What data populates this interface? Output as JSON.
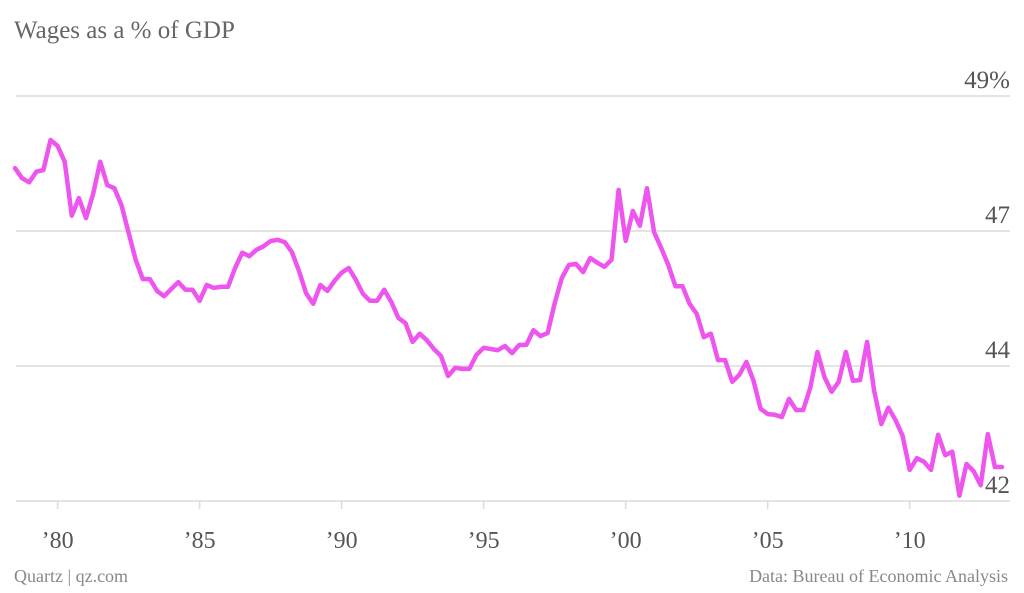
{
  "chart_data": {
    "type": "line",
    "title": "Wages as a % of GDP",
    "credit": "Quartz | qz.com",
    "source": "Data: Bureau of Economic Analysis",
    "x": [
      1978.5,
      1978.75,
      1979,
      1979.25,
      1979.5,
      1979.75,
      1980,
      1980.25,
      1980.5,
      1980.75,
      1981,
      1981.25,
      1981.5,
      1981.75,
      1982,
      1982.25,
      1982.5,
      1982.75,
      1983,
      1983.25,
      1983.5,
      1983.75,
      1984,
      1984.25,
      1984.5,
      1984.75,
      1985,
      1985.25,
      1985.5,
      1985.75,
      1986,
      1986.25,
      1986.5,
      1986.75,
      1987,
      1987.25,
      1987.5,
      1987.75,
      1988,
      1988.25,
      1988.5,
      1988.75,
      1989,
      1989.25,
      1989.5,
      1989.75,
      1990,
      1990.25,
      1990.5,
      1990.75,
      1991,
      1991.25,
      1991.5,
      1991.75,
      1992,
      1992.25,
      1992.5,
      1992.75,
      1993,
      1993.25,
      1993.5,
      1993.75,
      1994,
      1994.25,
      1994.5,
      1994.75,
      1995,
      1995.25,
      1995.5,
      1995.75,
      1996,
      1996.25,
      1996.5,
      1996.75,
      1997,
      1997.25,
      1997.5,
      1997.75,
      1998,
      1998.25,
      1998.5,
      1998.75,
      1999,
      1999.25,
      1999.5,
      1999.75,
      2000,
      2000.25,
      2000.5,
      2000.75,
      2001,
      2001.25,
      2001.5,
      2001.75,
      2002,
      2002.25,
      2002.5,
      2002.75,
      2003,
      2003.25,
      2003.5,
      2003.75,
      2004,
      2004.25,
      2004.5,
      2004.75,
      2005,
      2005.25,
      2005.5,
      2005.75,
      2006,
      2006.25,
      2006.5,
      2006.75,
      2007,
      2007.25,
      2007.5,
      2007.75,
      2008,
      2008.25,
      2008.5,
      2008.75,
      2009,
      2009.25,
      2009.5,
      2009.75,
      2010,
      2010.25,
      2010.5,
      2010.75,
      2011,
      2011.25,
      2011.5,
      2011.75,
      2012,
      2012.25,
      2012.5,
      2012.75,
      2013,
      2013.25
    ],
    "series": [
      {
        "name": "Wages as a % of GDP",
        "color": "#ee55ee",
        "values": [
          47.67,
          47.5,
          47.43,
          47.61,
          47.64,
          48.15,
          48.05,
          47.78,
          46.86,
          47.16,
          46.82,
          47.23,
          47.78,
          47.38,
          47.33,
          47.04,
          46.57,
          46.11,
          45.78,
          45.78,
          45.58,
          45.49,
          45.61,
          45.73,
          45.6,
          45.6,
          45.41,
          45.68,
          45.63,
          45.65,
          45.65,
          45.97,
          46.23,
          46.17,
          46.28,
          46.34,
          46.43,
          46.45,
          46.41,
          46.24,
          45.92,
          45.54,
          45.36,
          45.68,
          45.58,
          45.75,
          45.89,
          45.97,
          45.77,
          45.53,
          45.41,
          45.41,
          45.6,
          45.39,
          45.12,
          45.03,
          44.71,
          44.85,
          44.74,
          44.59,
          44.47,
          44.13,
          44.27,
          44.25,
          44.25,
          44.49,
          44.61,
          44.59,
          44.57,
          44.64,
          44.52,
          44.66,
          44.66,
          44.91,
          44.81,
          44.86,
          45.37,
          45.8,
          46.02,
          46.04,
          45.9,
          46.14,
          46.06,
          45.99,
          46.11,
          47.3,
          46.43,
          46.94,
          46.69,
          47.33,
          46.58,
          46.31,
          46.02,
          45.66,
          45.66,
          45.36,
          45.19,
          44.79,
          44.85,
          44.4,
          44.4,
          44.03,
          44.15,
          44.37,
          44.05,
          43.57,
          43.48,
          43.47,
          43.43,
          43.74,
          43.55,
          43.55,
          43.93,
          44.54,
          44.11,
          43.86,
          44.03,
          44.54,
          44.05,
          44.06,
          44.71,
          43.87,
          43.31,
          43.59,
          43.38,
          43.11,
          42.53,
          42.73,
          42.67,
          42.53,
          43.13,
          42.78,
          42.84,
          42.09,
          42.63,
          42.51,
          42.27,
          43.14,
          42.58,
          42.58
        ]
      }
    ],
    "xlim": [
      1978.5,
      2013.25
    ],
    "xticks": [
      {
        "value": 1980,
        "label": "’80"
      },
      {
        "value": 1985,
        "label": "’85"
      },
      {
        "value": 1990,
        "label": "’90"
      },
      {
        "value": 1995,
        "label": "’95"
      },
      {
        "value": 2000,
        "label": "’00"
      },
      {
        "value": 2005,
        "label": "’05"
      },
      {
        "value": 2010,
        "label": "’10"
      }
    ],
    "ylim": [
      42.0,
      48.9
    ],
    "yticks": [
      {
        "value": 42.0,
        "label": "42"
      },
      {
        "value": 44.3,
        "label": "44"
      },
      {
        "value": 46.6,
        "label": "47"
      },
      {
        "value": 48.9,
        "label": "49%"
      }
    ],
    "grid": true
  }
}
